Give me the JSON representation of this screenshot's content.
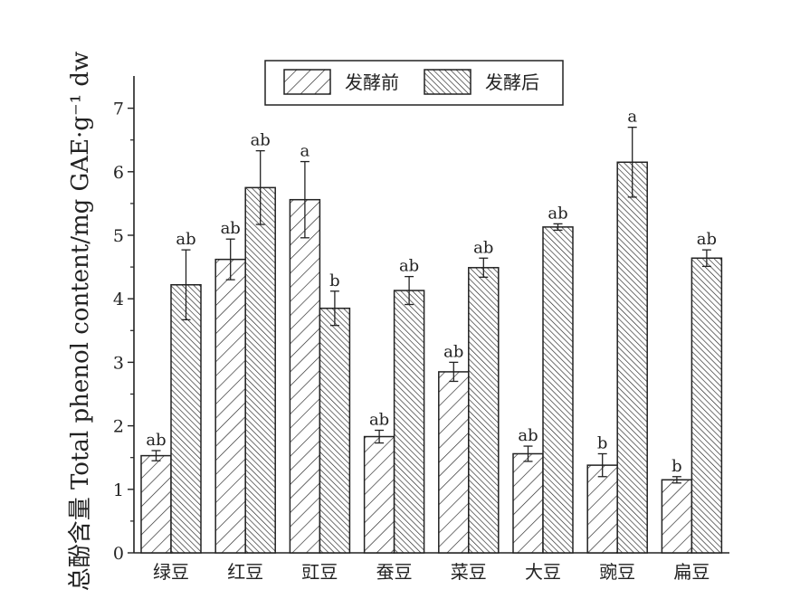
{
  "chart_data": {
    "type": "bar",
    "title": "",
    "xlabel": "",
    "ylabel": "总酚含量 Total phenol content/mg GAE·g⁻¹ dw",
    "ylim": [
      0,
      7.5
    ],
    "yticks": [
      "0",
      "1",
      "2",
      "3",
      "4",
      "5",
      "6",
      "7"
    ],
    "legend_position": "top-center",
    "categories": [
      "绿豆",
      "红豆",
      "豇豆",
      "蚕豆",
      "菜豆",
      "大豆",
      "豌豆",
      "扁豆"
    ],
    "series": [
      {
        "name": "发酵前",
        "pattern": "sparse-diagonal-hatch",
        "values": [
          1.53,
          4.62,
          5.56,
          1.83,
          2.85,
          1.56,
          1.38,
          1.15
        ],
        "errors": [
          0.08,
          0.32,
          0.6,
          0.1,
          0.15,
          0.12,
          0.18,
          0.05
        ],
        "sig": [
          "ab",
          "ab",
          "a",
          "ab",
          "ab",
          "ab",
          "b",
          "b"
        ]
      },
      {
        "name": "发酵后",
        "pattern": "dense-diagonal-hatch",
        "values": [
          4.22,
          5.75,
          3.85,
          4.13,
          4.49,
          5.13,
          6.15,
          4.64
        ],
        "errors": [
          0.55,
          0.58,
          0.27,
          0.22,
          0.15,
          0.05,
          0.55,
          0.13
        ],
        "sig": [
          "ab",
          "ab",
          "b",
          "ab",
          "ab",
          "ab",
          "a",
          "ab"
        ]
      }
    ]
  }
}
